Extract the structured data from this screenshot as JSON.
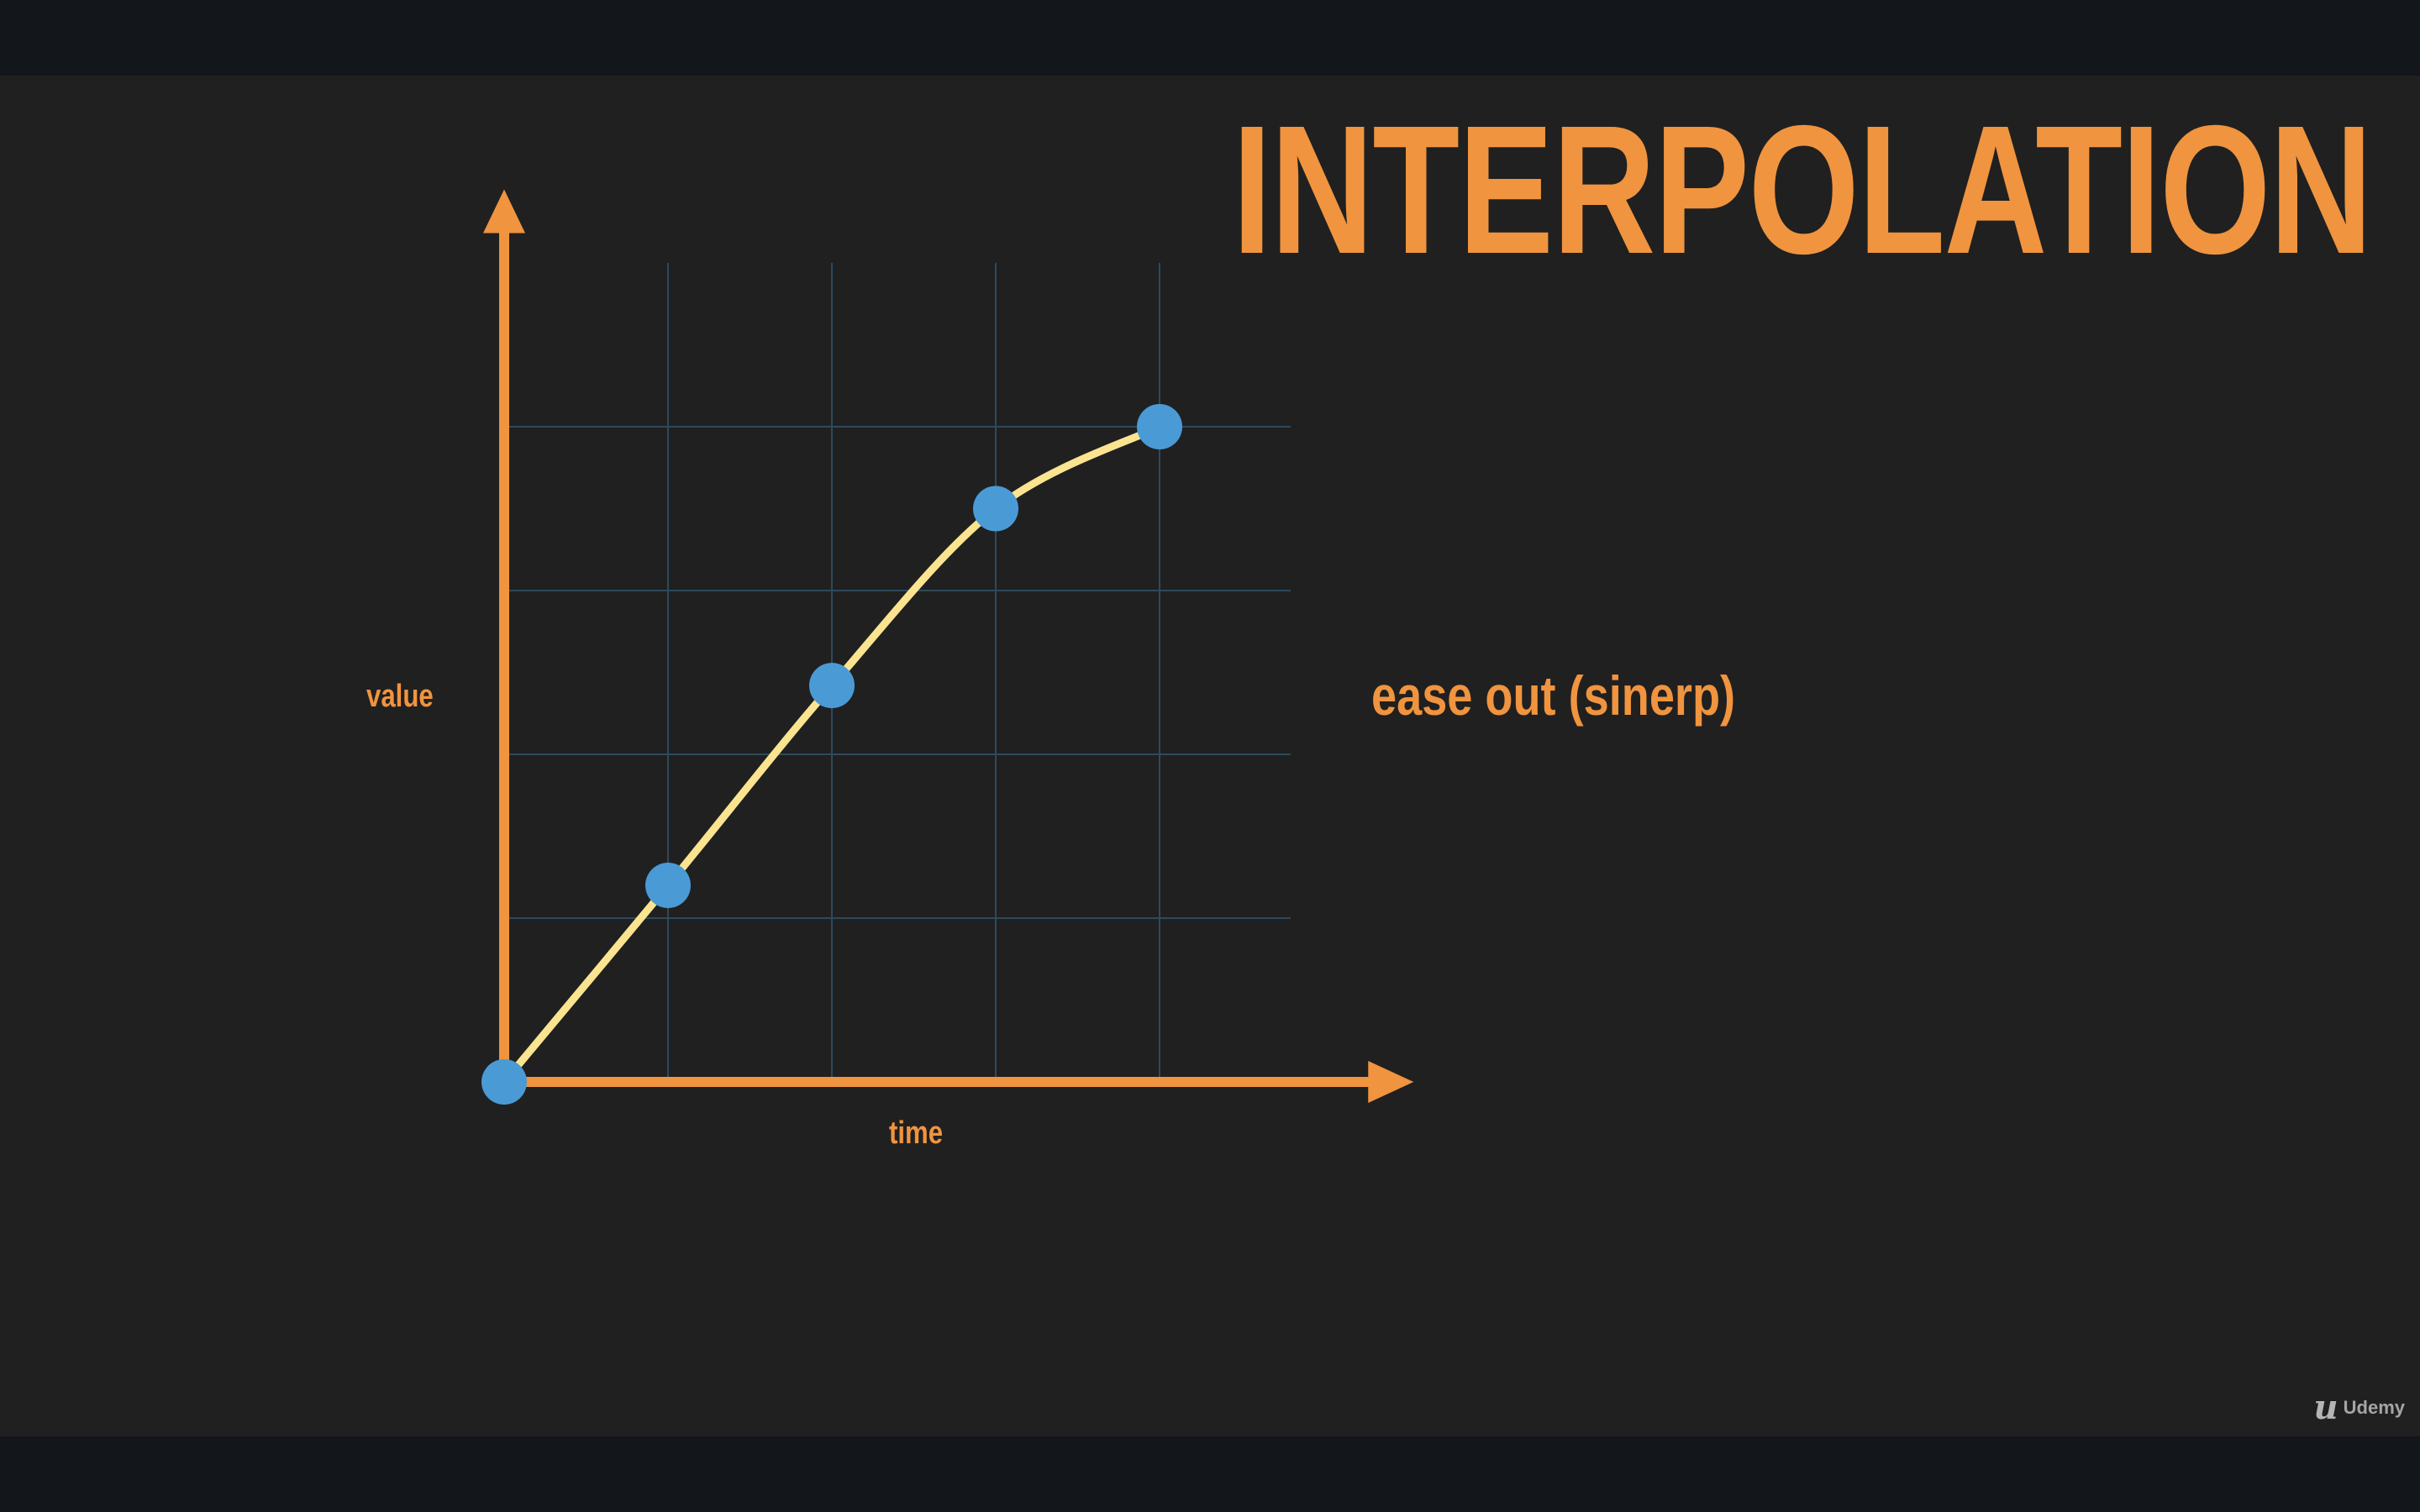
{
  "slide": {
    "title": "INTERPOLATION",
    "curve_name": "ease out (sinerp)",
    "brand": "Udemy"
  },
  "chart_data": {
    "type": "line",
    "xlabel": "time",
    "ylabel": "value",
    "x": [
      0,
      1,
      2,
      3,
      4
    ],
    "values": [
      0,
      1.2,
      2.42,
      3.5,
      4
    ],
    "xlim": [
      0,
      5.5
    ],
    "ylim": [
      0,
      5.5
    ],
    "grid": true,
    "curve": "smooth",
    "colors": {
      "axis": "#f0943f",
      "curve": "#fbe490",
      "points": "#4a9ad6",
      "grid": "#2d4a5e"
    }
  }
}
